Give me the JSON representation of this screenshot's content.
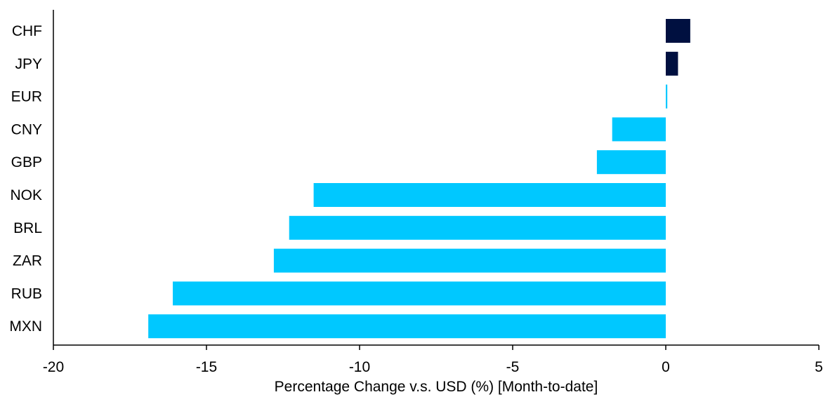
{
  "chart_data": {
    "type": "bar",
    "orientation": "horizontal",
    "title": "",
    "xlabel": "Percentage Change v.s. USD (%) [Month-to-date]",
    "ylabel": "",
    "xlim": [
      -20,
      5
    ],
    "xticks": [
      "-20",
      "-15",
      "-10",
      "-5",
      "0",
      "5"
    ],
    "grid": false,
    "legend": "none",
    "categories": [
      "CHF",
      "JPY",
      "EUR",
      "CNY",
      "GBP",
      "NOK",
      "BRL",
      "ZAR",
      "RUB",
      "MXN"
    ],
    "values": [
      0.8,
      0.4,
      0.05,
      -1.75,
      -2.25,
      -11.5,
      -12.3,
      -12.8,
      -16.1,
      -16.9
    ],
    "colors": {
      "positive_highlight": "#001040",
      "default": "#00C8FF"
    },
    "highlighted": [
      "CHF",
      "JPY"
    ]
  }
}
